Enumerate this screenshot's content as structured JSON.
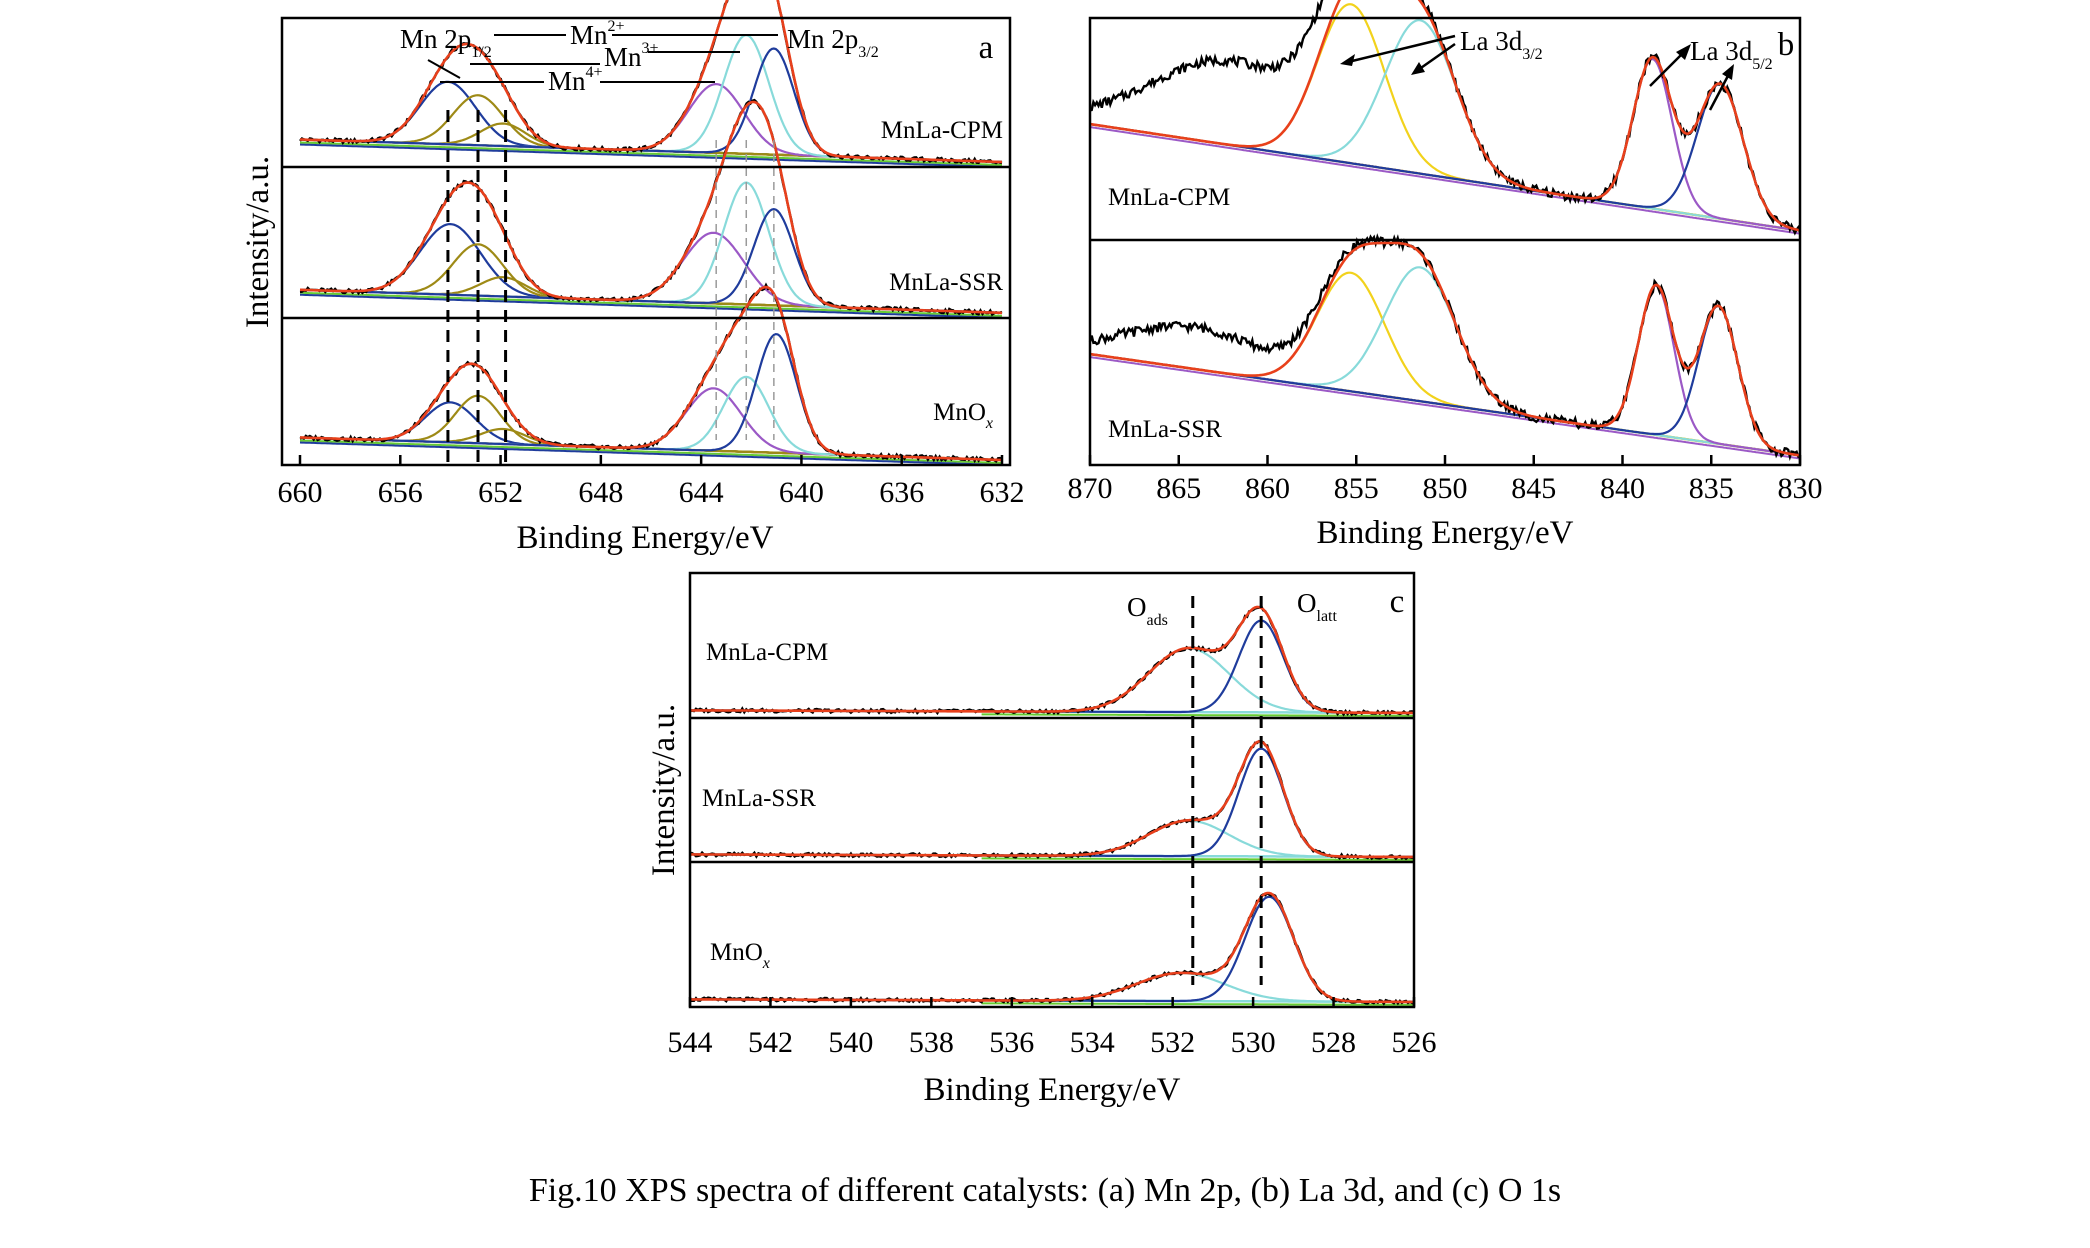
{
  "caption": "Fig.10    XPS spectra of different catalysts: (a) Mn 2p, (b) La 3d, and (c) O 1s",
  "colors": {
    "experimental": "#000000",
    "envelope": "#e8401c",
    "background": "#e8d10f",
    "fit_blue": "#1f3c9c",
    "fit_cyan": "#88dada",
    "fit_purple": "#9b59c6",
    "fit_olive": "#9e8a16",
    "fit_green": "#66cc33",
    "fit_yellow": "#f2d21c"
  },
  "chart_data": [
    {
      "type": "line",
      "panel": "a",
      "xlabel": "Binding Energy/eV",
      "ylabel": "Intensity/a.u.",
      "xlim": [
        660,
        632
      ],
      "xticks": [
        "660",
        "656",
        "652",
        "648",
        "644",
        "640",
        "636",
        "632"
      ],
      "reference_lines": [
        654.1,
        652.9,
        651.8,
        643.4,
        642.2,
        641.1
      ],
      "annotations": {
        "mn2p12": "Mn 2p",
        "mn2p12_sub": "1/2",
        "mn2p32": "Mn 2p",
        "mn2p32_sub": "3/2",
        "mn2plus": "Mn",
        "mn2plus_sup": "2+",
        "mn3plus": "Mn",
        "mn3plus_sup": "3+",
        "mn4plus": "Mn",
        "mn4plus_sup": "4+"
      },
      "samples": [
        {
          "name": "MnLa-CPM",
          "baseline": [
            0.62,
            0.62,
            0.3,
            0.1
          ],
          "background_step": 0.2,
          "peaks": [
            {
              "component": "Mn2+ 2p1/2",
              "center": 654.1,
              "width": 1.1,
              "height": 0.5,
              "color": "fit_blue"
            },
            {
              "component": "Mn3+ 2p1/2",
              "center": 652.9,
              "width": 1.0,
              "height": 0.4,
              "color": "fit_olive"
            },
            {
              "component": "Mn4+ 2p1/2",
              "center": 651.9,
              "width": 0.9,
              "height": 0.18,
              "color": "fit_olive"
            },
            {
              "component": "Mn4+ 2p3/2",
              "center": 643.4,
              "width": 1.1,
              "height": 0.55,
              "color": "fit_purple"
            },
            {
              "component": "Mn3+ 2p3/2",
              "center": 642.2,
              "width": 0.9,
              "height": 0.95,
              "color": "fit_cyan"
            },
            {
              "component": "Mn2+ 2p3/2",
              "center": 641.1,
              "width": 0.8,
              "height": 0.85,
              "color": "fit_blue"
            }
          ]
        },
        {
          "name": "MnLa-SSR",
          "baseline": [
            0.55,
            0.55,
            0.25,
            0.05
          ],
          "background_step": 0.2,
          "peaks": [
            {
              "component": "Mn2+ 2p1/2",
              "center": 654.0,
              "width": 1.2,
              "height": 0.55,
              "color": "fit_blue"
            },
            {
              "component": "Mn3+ 2p1/2",
              "center": 652.9,
              "width": 1.0,
              "height": 0.4,
              "color": "fit_olive"
            },
            {
              "component": "Mn4+ 2p1/2",
              "center": 651.9,
              "width": 0.9,
              "height": 0.15,
              "color": "fit_olive"
            },
            {
              "component": "Mn4+ 2p3/2",
              "center": 643.5,
              "width": 1.2,
              "height": 0.55,
              "color": "fit_purple"
            },
            {
              "component": "Mn3+ 2p3/2",
              "center": 642.2,
              "width": 0.9,
              "height": 0.95,
              "color": "fit_cyan"
            },
            {
              "component": "Mn2+ 2p3/2",
              "center": 641.1,
              "width": 0.8,
              "height": 0.75,
              "color": "fit_blue"
            }
          ]
        },
        {
          "name": "MnOx",
          "baseline": [
            0.7,
            0.7,
            0.35,
            0.2
          ],
          "background_step": 0.15,
          "peaks": [
            {
              "component": "Mn2+ 2p1/2",
              "center": 654.0,
              "width": 1.0,
              "height": 0.32,
              "color": "fit_blue"
            },
            {
              "component": "Mn3+ 2p1/2",
              "center": 652.9,
              "width": 0.9,
              "height": 0.38,
              "color": "fit_olive"
            },
            {
              "component": "Mn4+ 2p1/2",
              "center": 651.9,
              "width": 0.9,
              "height": 0.12,
              "color": "fit_olive"
            },
            {
              "component": "Mn4+ 2p3/2",
              "center": 643.5,
              "width": 1.1,
              "height": 0.5,
              "color": "fit_purple"
            },
            {
              "component": "Mn3+ 2p3/2",
              "center": 642.2,
              "width": 0.9,
              "height": 0.6,
              "color": "fit_cyan"
            },
            {
              "component": "Mn2+ 2p3/2",
              "center": 641.0,
              "width": 0.8,
              "height": 0.95,
              "color": "fit_blue"
            }
          ]
        }
      ]
    },
    {
      "type": "line",
      "panel": "b",
      "xlabel": "Binding Energy/eV",
      "xlim": [
        870,
        830
      ],
      "xticks": [
        "870",
        "865",
        "860",
        "855",
        "850",
        "845",
        "840",
        "835",
        "830"
      ],
      "annotations": {
        "la32": "La 3d",
        "la32_sub": "3/2",
        "la52": "La 3d",
        "la52_sub": "5/2"
      },
      "samples": [
        {
          "name": "MnLa-CPM",
          "background": [
            0.62,
            0.05
          ],
          "bump": {
            "center": 862,
            "width": 4.5,
            "height": 0.45
          },
          "peaks": [
            {
              "component": "La 3d3/2",
              "center": 855.3,
              "width": 1.9,
              "height": 0.85,
              "color": "fit_yellow"
            },
            {
              "component": "La 3d3/2 satellite",
              "center": 851.4,
              "width": 2.0,
              "height": 0.82,
              "color": "fit_cyan"
            },
            {
              "component": "La 3d5/2",
              "center": 838.3,
              "width": 1.1,
              "height": 0.8,
              "color": "fit_purple"
            },
            {
              "component": "La 3d5/2 satellite",
              "center": 834.5,
              "width": 1.3,
              "height": 0.72,
              "color": "fit_blue"
            }
          ]
        },
        {
          "name": "MnLa-SSR",
          "background": [
            0.58,
            0.05
          ],
          "bump": {
            "center": 864,
            "width": 4.0,
            "height": 0.22
          },
          "peaks": [
            {
              "component": "La 3d3/2",
              "center": 855.3,
              "width": 1.9,
              "height": 0.62,
              "color": "fit_yellow"
            },
            {
              "component": "La 3d3/2 satellite",
              "center": 851.4,
              "width": 2.0,
              "height": 0.7,
              "color": "fit_cyan"
            },
            {
              "component": "La 3d5/2",
              "center": 838.1,
              "width": 1.0,
              "height": 0.78,
              "color": "fit_purple"
            },
            {
              "component": "La 3d5/2 satellite",
              "center": 834.6,
              "width": 1.1,
              "height": 0.72,
              "color": "fit_blue"
            }
          ]
        }
      ]
    },
    {
      "type": "line",
      "panel": "c",
      "xlabel": "Binding Energy/eV",
      "ylabel": "Intensity/a.u.",
      "xlim": [
        544,
        526
      ],
      "xticks": [
        "544",
        "542",
        "540",
        "538",
        "536",
        "534",
        "532",
        "530",
        "528",
        "526"
      ],
      "reference_lines": [
        531.5,
        529.8
      ],
      "annotations": {
        "oads": "O",
        "oads_sub": "ads",
        "olatt": "O",
        "olatt_sub": "latt"
      },
      "samples": [
        {
          "name": "MnLa-CPM",
          "baseline": 0.04,
          "peaks": [
            {
              "component": "O ads",
              "center": 531.6,
              "width": 1.0,
              "height": 0.5,
              "color": "fit_cyan"
            },
            {
              "component": "O latt",
              "center": 529.8,
              "width": 0.55,
              "height": 0.72,
              "color": "fit_blue"
            }
          ]
        },
        {
          "name": "MnLa-SSR",
          "baseline": 0.04,
          "peaks": [
            {
              "component": "O ads",
              "center": 531.6,
              "width": 1.0,
              "height": 0.28,
              "color": "fit_cyan"
            },
            {
              "component": "O latt",
              "center": 529.8,
              "width": 0.55,
              "height": 0.85,
              "color": "fit_blue"
            }
          ]
        },
        {
          "name": "MnOx",
          "baseline": 0.04,
          "peaks": [
            {
              "component": "O ads",
              "center": 531.8,
              "width": 1.1,
              "height": 0.22,
              "color": "fit_cyan"
            },
            {
              "component": "O latt",
              "center": 529.6,
              "width": 0.6,
              "height": 0.82,
              "color": "fit_blue"
            }
          ]
        }
      ]
    }
  ]
}
